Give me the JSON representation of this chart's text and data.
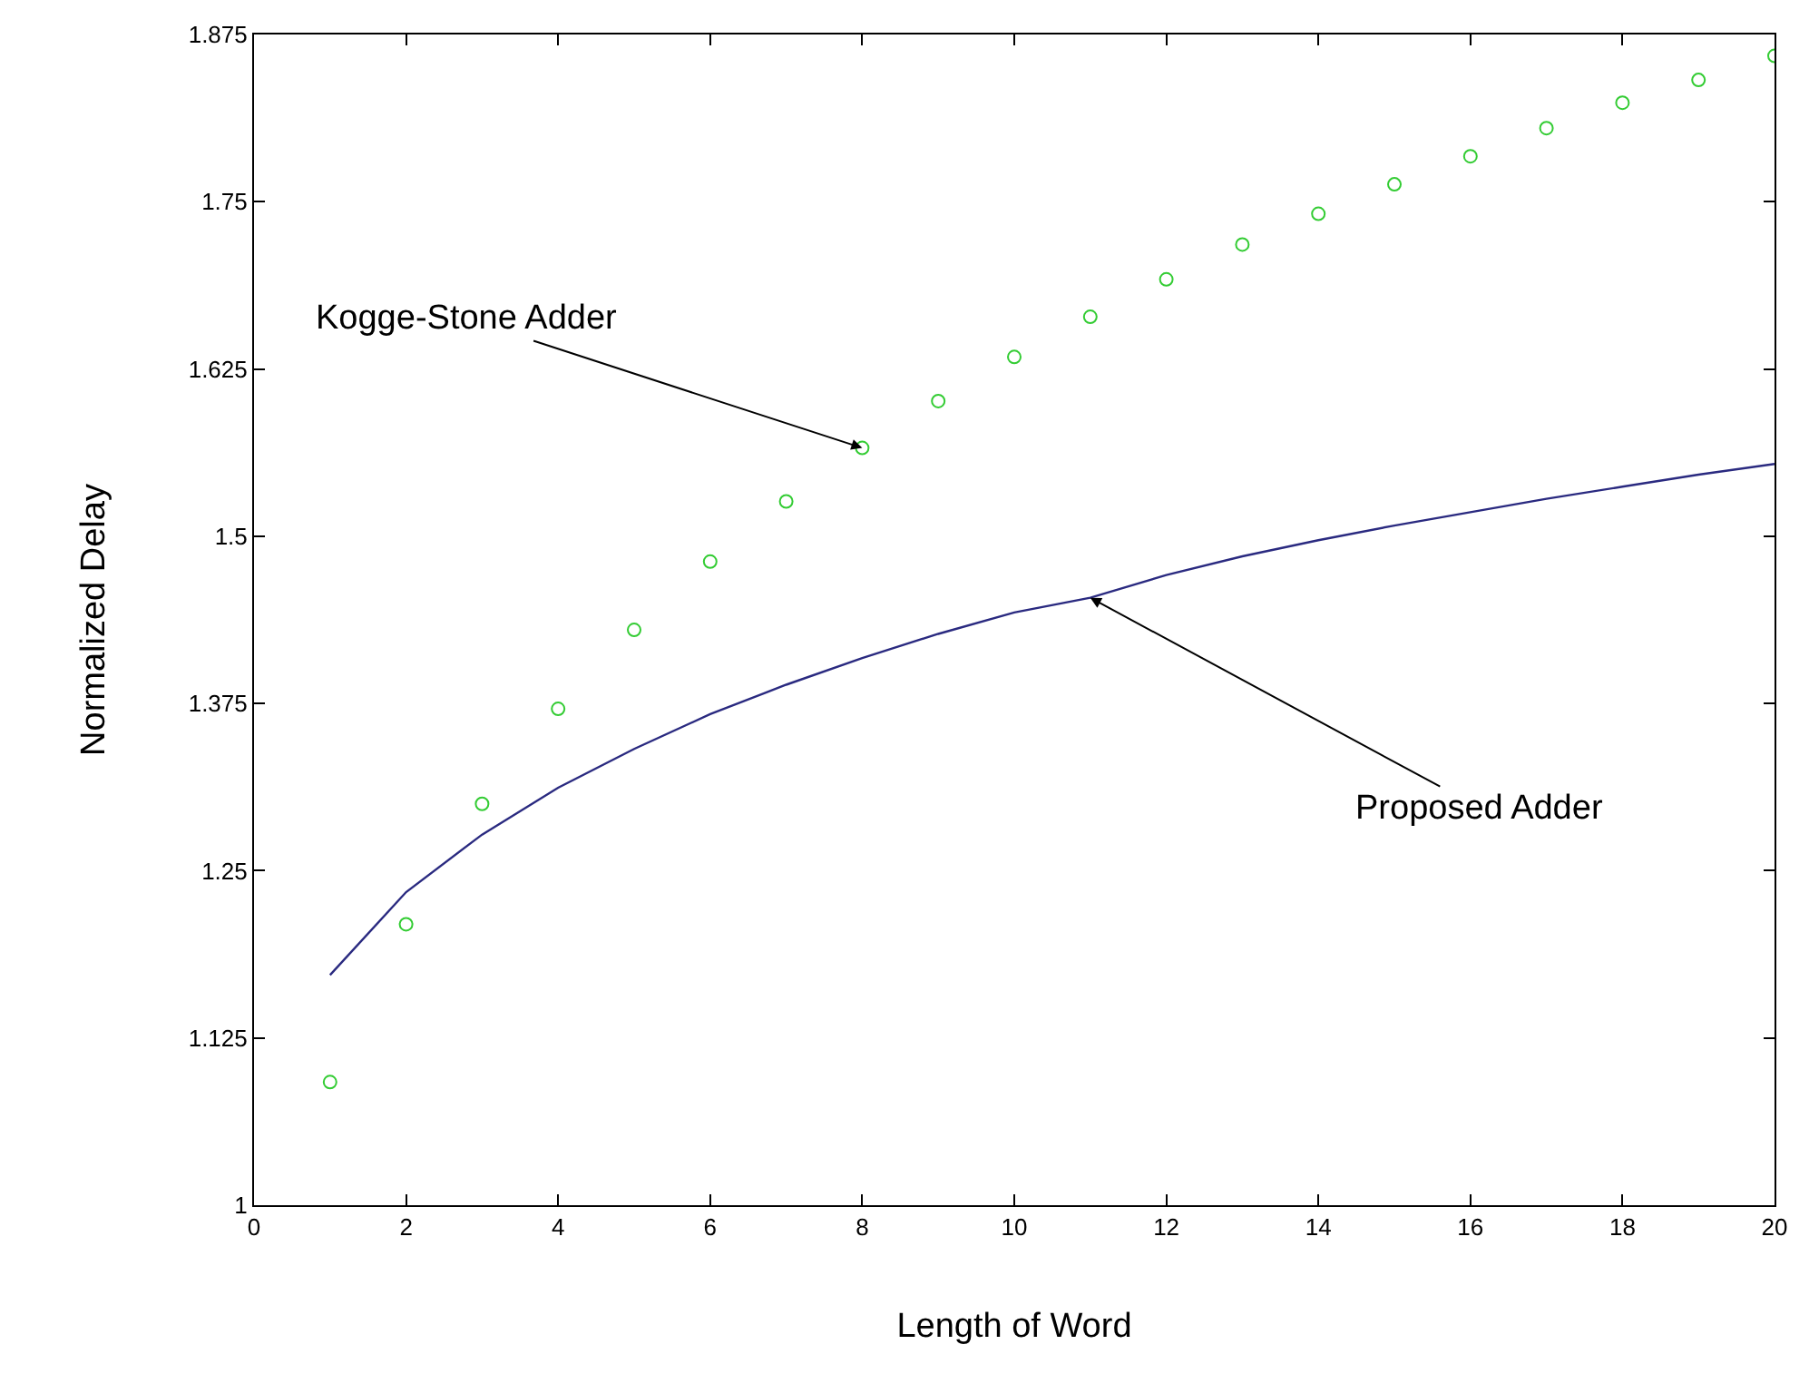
{
  "chart_data": {
    "type": "scatter",
    "xlabel": "Length of Word",
    "ylabel": "Normalized Delay",
    "x": [
      1,
      2,
      3,
      4,
      5,
      6,
      7,
      8,
      9,
      10,
      11,
      12,
      13,
      14,
      15,
      16,
      17,
      18,
      19,
      20
    ],
    "series": [
      {
        "marker": "circle",
        "color": "#33cc33",
        "values": [
          1.092,
          1.21,
          1.3,
          1.371,
          1.43,
          1.481,
          1.526,
          1.566,
          1.601,
          1.634,
          1.664,
          1.692,
          1.718,
          1.741,
          1.763,
          1.784,
          1.805,
          1.824,
          1.841,
          1.859
        ]
      },
      {
        "type": "line",
        "marker": "none",
        "color": "#2a2a80",
        "values": [
          1.172,
          1.234,
          1.277,
          1.312,
          1.341,
          1.367,
          1.389,
          1.409,
          1.427,
          1.443,
          1.454,
          1.471,
          1.485,
          1.497,
          1.508,
          1.518,
          1.528,
          1.537,
          1.546,
          1.554
        ]
      }
    ],
    "xlim": [
      0,
      20
    ],
    "xticks": [
      0,
      2,
      4,
      6,
      8,
      10,
      12,
      14,
      16,
      18,
      20
    ],
    "ylim": [
      1,
      1.875
    ],
    "yticks": [
      1,
      1.125,
      1.25,
      1.375,
      1.5,
      1.625,
      1.75,
      1.875
    ],
    "annotations": [
      {
        "text": "Kogge-Stone Adder",
        "x": 8,
        "y": 1.566
      },
      {
        "text": "Proposed Adder",
        "x": 11,
        "y": 1.454
      }
    ]
  }
}
